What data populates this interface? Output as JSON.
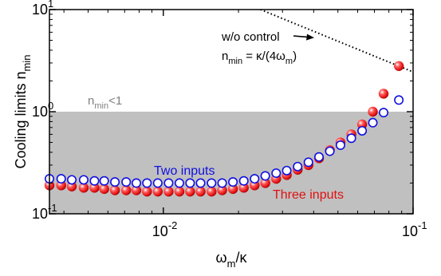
{
  "chart_data": {
    "type": "scatter",
    "x_scale": "log",
    "y_scale": "log",
    "xlim": [
      0.0035,
      0.1
    ],
    "ylim": [
      0.1,
      10
    ],
    "x_ticks": [
      {
        "value": 0.01,
        "mant": "10",
        "exp": "-2"
      },
      {
        "value": 0.1,
        "mant": "10",
        "exp": "-1"
      }
    ],
    "y_ticks": [
      {
        "value": 0.1,
        "mant": "10",
        "exp": "-1"
      },
      {
        "value": 1,
        "mant": "10",
        "exp": "0"
      },
      {
        "value": 10,
        "mant": "10",
        "exp": "1"
      }
    ],
    "xlabel": {
      "pre": "ω",
      "sub": "m",
      "post": "/κ"
    },
    "ylabel": {
      "pre": "Cooling limits n",
      "sub": "min"
    },
    "shaded_region": {
      "y_from": 0.1,
      "y_to": 1,
      "color": "#c0c0c0",
      "label": {
        "pre": "n",
        "sub": "min",
        "post": "<1"
      }
    },
    "series": [
      {
        "name": "Two inputs",
        "color": "#1010e0",
        "marker": "open-circle",
        "x": [
          0.0035,
          0.0039,
          0.0043,
          0.0048,
          0.0053,
          0.0058,
          0.0064,
          0.0071,
          0.0078,
          0.0086,
          0.0095,
          0.0105,
          0.0116,
          0.0128,
          0.0141,
          0.0156,
          0.0172,
          0.019,
          0.021,
          0.0232,
          0.0256,
          0.0283,
          0.0312,
          0.0345,
          0.0381,
          0.042,
          0.0464,
          0.0512,
          0.0566,
          0.0625,
          0.069,
          0.0762,
          0.0877
        ],
        "y": [
          0.22,
          0.22,
          0.215,
          0.215,
          0.21,
          0.21,
          0.205,
          0.205,
          0.2,
          0.2,
          0.2,
          0.2,
          0.2,
          0.2,
          0.2,
          0.2,
          0.2,
          0.205,
          0.21,
          0.22,
          0.235,
          0.25,
          0.265,
          0.29,
          0.32,
          0.36,
          0.41,
          0.47,
          0.55,
          0.65,
          0.78,
          0.98,
          1.3
        ]
      },
      {
        "name": "Three inputs",
        "color": "#e01010",
        "marker": "filled-sphere",
        "x": [
          0.0035,
          0.0039,
          0.0043,
          0.0048,
          0.0053,
          0.0058,
          0.0064,
          0.0071,
          0.0078,
          0.0086,
          0.0095,
          0.0105,
          0.0116,
          0.0128,
          0.0141,
          0.0156,
          0.0172,
          0.019,
          0.021,
          0.0232,
          0.0256,
          0.0283,
          0.0312,
          0.0345,
          0.0381,
          0.042,
          0.0464,
          0.0512,
          0.0566,
          0.0625,
          0.069,
          0.0762,
          0.0877
        ],
        "y": [
          0.19,
          0.19,
          0.185,
          0.18,
          0.18,
          0.175,
          0.17,
          0.17,
          0.17,
          0.165,
          0.165,
          0.165,
          0.165,
          0.165,
          0.165,
          0.165,
          0.17,
          0.175,
          0.18,
          0.19,
          0.2,
          0.22,
          0.24,
          0.27,
          0.3,
          0.35,
          0.42,
          0.5,
          0.6,
          0.75,
          1.0,
          1.5,
          2.8
        ]
      }
    ],
    "reference_line": {
      "style": "dotted",
      "x": [
        0.0245,
        0.1
      ],
      "y": [
        10,
        2.45
      ]
    },
    "annotations": [
      {
        "id": "wo_control",
        "text": "w/o control",
        "arrow": "right"
      },
      {
        "id": "formula",
        "pre": "n",
        "sub1": "min",
        "mid": " = κ/(4ω",
        "sub2": "m",
        "post": ")"
      }
    ]
  }
}
